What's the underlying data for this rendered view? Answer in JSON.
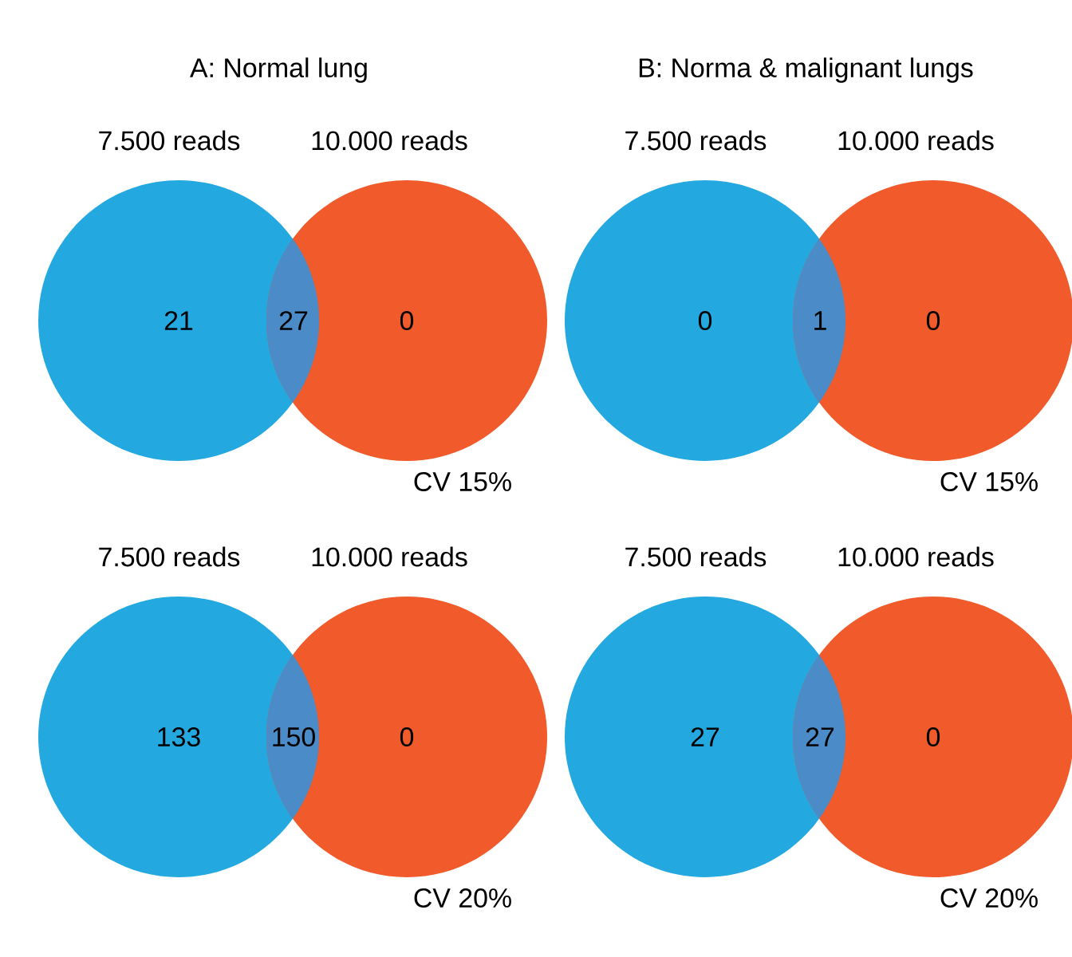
{
  "chart_data": [
    {
      "type": "other",
      "title": "A: Normal lung",
      "categories": [
        "7.500 reads",
        null,
        "10.000 reads"
      ],
      "values": [
        21,
        27,
        0
      ],
      "colors": [
        "#23a8e0",
        "#4a8bc8",
        "#f15a2b"
      ],
      "data_labels": true,
      "annotations": [
        "CV 15%"
      ]
    },
    {
      "type": "other",
      "title": "B: Norma & malignant lungs",
      "categories": [
        "7.500 reads",
        null,
        "10.000 reads"
      ],
      "values": [
        0,
        1,
        0
      ],
      "colors": [
        "#23a8e0",
        "#4a8bc8",
        "#f15a2b"
      ],
      "data_labels": true,
      "annotations": [
        "CV 15%"
      ]
    },
    {
      "type": "other",
      "categories": [
        "7.500 reads",
        null,
        "10.000 reads"
      ],
      "values": [
        133,
        150,
        0
      ],
      "colors": [
        "#23a8e0",
        "#4a8bc8",
        "#f15a2b"
      ],
      "data_labels": true,
      "annotations": [
        "CV 20%"
      ]
    },
    {
      "type": "other",
      "categories": [
        "7.500 reads",
        null,
        "10.000 reads"
      ],
      "values": [
        27,
        27,
        0
      ],
      "colors": [
        "#23a8e0",
        "#4a8bc8",
        "#f15a2b"
      ],
      "data_labels": true,
      "annotations": [
        "CV 20%"
      ]
    }
  ]
}
